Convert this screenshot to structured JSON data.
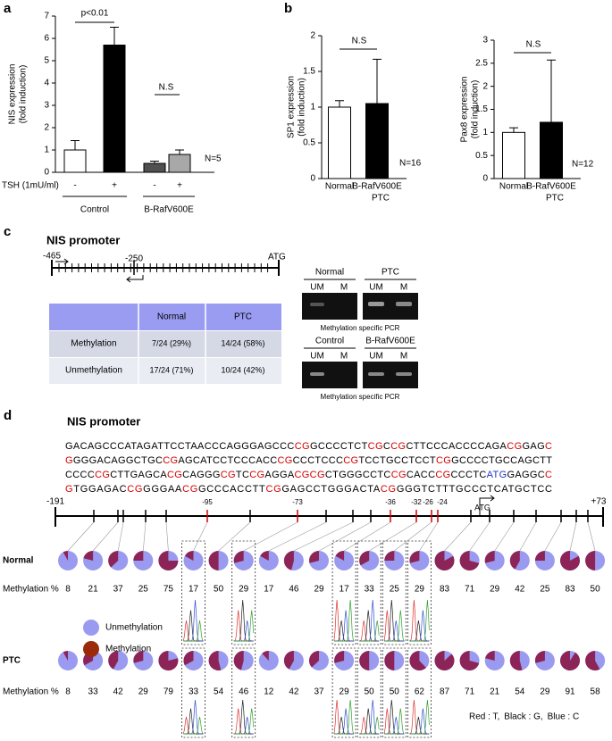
{
  "panel_labels": [
    "a",
    "b",
    "c",
    "d"
  ],
  "chart_data": [
    {
      "type": "bar",
      "y_label": [
        "NIS expression",
        "(fold induction)"
      ],
      "categories": [
        "-",
        "+",
        "-",
        "+"
      ],
      "category_title": "TSH (1mU/ml)",
      "groups": [
        "Control",
        "B-RafV600E"
      ],
      "values": [
        1.0,
        5.7,
        0.4,
        0.8
      ],
      "errors": [
        0.42,
        0.8,
        0.1,
        0.2
      ],
      "colors": [
        "#ffffff",
        "#000000",
        "#505050",
        "#a8a8a8"
      ],
      "ylim": [
        0,
        7
      ],
      "yticks": [
        0,
        1,
        2,
        3,
        4,
        5,
        6,
        7
      ],
      "annotations": [
        "p<0.01",
        "N.S",
        "N=5"
      ]
    },
    {
      "type": "bar",
      "y_label": [
        "SP1 expression",
        "(fold induction)"
      ],
      "categories": [
        "Normal",
        "B-RafV600E"
      ],
      "category_note": "PTC",
      "values": [
        1.0,
        1.05
      ],
      "errors": [
        0.09,
        0.62
      ],
      "colors": [
        "#ffffff",
        "#000000"
      ],
      "ylim": [
        0,
        2
      ],
      "yticks": [
        0,
        0.5,
        1,
        1.5,
        2
      ],
      "annotations": [
        "N.S",
        "N=16"
      ]
    },
    {
      "type": "bar",
      "y_label": [
        "Pax8 expression",
        "(fold induction)"
      ],
      "categories": [
        "Normal",
        "B-RafV600E"
      ],
      "category_note": "PTC",
      "values": [
        1.0,
        1.22
      ],
      "errors": [
        0.1,
        1.35
      ],
      "colors": [
        "#ffffff",
        "#000000"
      ],
      "ylim": [
        0,
        3
      ],
      "yticks": [
        0,
        0.5,
        1,
        1.5,
        2,
        2.5,
        3
      ],
      "annotations": [
        "N.S",
        "N=12"
      ]
    }
  ],
  "panel_c": {
    "title": "NIS promoter",
    "positions": [
      "-465",
      "-250",
      "ATG"
    ],
    "table": {
      "header": [
        "Normal",
        "PTC"
      ],
      "rows": [
        {
          "label": "Methylation",
          "cells": [
            "7/24 (29%)",
            "14/24 (58%)"
          ]
        },
        {
          "label": "Unmethylation",
          "cells": [
            "17/24 (71%)",
            "10/24 (42%)"
          ]
        }
      ]
    },
    "gels": [
      {
        "labels": [
          "Normal",
          "PTC"
        ],
        "lanes": [
          "UM",
          "M",
          "UM",
          "M"
        ],
        "caption": "Methylation specific PCR"
      },
      {
        "labels": [
          "Control",
          "B-RafV600E"
        ],
        "lanes": [
          "UM",
          "M",
          "UM",
          "M"
        ],
        "caption": "Methylation specific PCR"
      }
    ]
  },
  "panel_d": {
    "title": "NIS promoter",
    "sequence": [
      [
        {
          "text": "GACAGCCCATAGATTCCTAACCCAGGGAGCCC"
        },
        {
          "text": "CG",
          "color": "#d40000"
        },
        {
          "text": "GCCCCTCT"
        },
        {
          "text": "CG",
          "color": "#d40000"
        },
        {
          "text": "C"
        },
        {
          "text": "CG",
          "color": "#d40000"
        },
        {
          "text": "CTTCCCACCCCAGA"
        },
        {
          "text": "CG",
          "color": "#d40000"
        },
        {
          "text": "GAG"
        },
        {
          "text": "C",
          "color": "#d40000"
        }
      ],
      [
        {
          "text": "G",
          "color": "#d40000"
        },
        {
          "text": "GGGACAGGCTGC"
        },
        {
          "text": "CG",
          "color": "#d40000"
        },
        {
          "text": "AGCATCCTCCCACC"
        },
        {
          "text": "CG",
          "color": "#d40000"
        },
        {
          "text": "CCCTCCC"
        },
        {
          "text": "CG",
          "color": "#d40000"
        },
        {
          "text": "TCCTGCCTCCT"
        },
        {
          "text": "CG",
          "color": "#d40000"
        },
        {
          "text": "GCCCCTGCCAGCTT"
        }
      ],
      [
        {
          "text": "CCCC"
        },
        {
          "text": "CG",
          "color": "#d40000"
        },
        {
          "text": "CTTGAGCA"
        },
        {
          "text": "CG",
          "color": "#d40000"
        },
        {
          "text": "CAGGG"
        },
        {
          "text": "CG",
          "color": "#d40000"
        },
        {
          "text": "TC"
        },
        {
          "text": "CG",
          "color": "#d40000"
        },
        {
          "text": "AGGA"
        },
        {
          "text": "CGCG",
          "color": "#d40000"
        },
        {
          "text": "CTGGGCCTC"
        },
        {
          "text": "CG",
          "color": "#d40000"
        },
        {
          "text": "CACC"
        },
        {
          "text": "CG",
          "color": "#d40000"
        },
        {
          "text": "CCCTC"
        },
        {
          "text": "ATG",
          "color": "#2233cc"
        },
        {
          "text": "GAGGC"
        },
        {
          "text": "C",
          "color": "#d40000"
        }
      ],
      [
        {
          "text": "G",
          "color": "#d40000"
        },
        {
          "text": "TGGAGAC"
        },
        {
          "text": "CG",
          "color": "#d40000"
        },
        {
          "text": "GGGAA"
        },
        {
          "text": "CG",
          "color": "#d40000"
        },
        {
          "text": "GCCCACCTT"
        },
        {
          "text": "CG",
          "color": "#d40000"
        },
        {
          "text": "GAGCCTGGGACTA"
        },
        {
          "text": "CG",
          "color": "#d40000"
        },
        {
          "text": "GGGTCTTTGCCCTCATGCTCC"
        }
      ]
    ],
    "start": "-191",
    "end": "+73",
    "sites": [
      "-95",
      "-73",
      "-36",
      "-32",
      "-26",
      "-24"
    ],
    "atg": "ATG",
    "colors": {
      "unmethylated": "#9a9af0",
      "methylated": "#8c2458",
      "legend_methylated": "#9b2a0a"
    },
    "legend": [
      "Unmethylation",
      "Methylation"
    ],
    "rows": [
      {
        "name": "Normal",
        "measure": "Methylation %",
        "values": [
          8,
          21,
          37,
          25,
          75,
          17,
          50,
          29,
          17,
          46,
          29,
          17,
          33,
          25,
          29,
          83,
          71,
          29,
          42,
          25,
          83,
          50
        ]
      },
      {
        "name": "PTC",
        "measure": "Methylation %",
        "values": [
          8,
          33,
          42,
          29,
          79,
          33,
          54,
          46,
          12,
          42,
          37,
          29,
          50,
          50,
          62,
          87,
          71,
          21,
          54,
          29,
          91,
          58
        ]
      }
    ],
    "note": [
      {
        "text": "Red : T,",
        "color": "#d40000"
      },
      {
        "text": "Black : G,",
        "color": "#000000"
      },
      {
        "text": "Blue : C",
        "color": "#2233cc"
      }
    ]
  }
}
